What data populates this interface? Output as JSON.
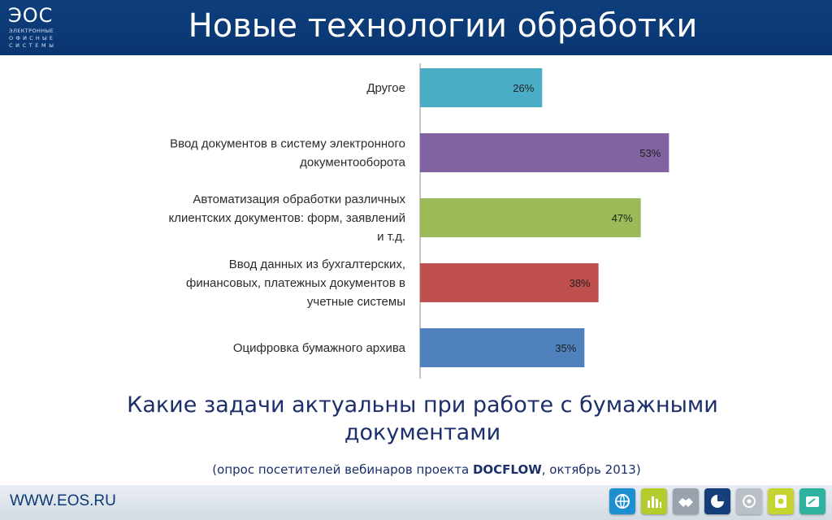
{
  "header": {
    "logo_main": "ЭОС",
    "logo_line1": "ЭЛЕКТРОННЫЕ",
    "logo_line2": "ОФИСНЫЕ",
    "logo_line3": "СИСТЕМЫ",
    "title": "Новые технологии обработки"
  },
  "chart_data": {
    "type": "bar",
    "orientation": "horizontal",
    "categories": [
      [
        "Другое"
      ],
      [
        "Ввод документов в систему электронного",
        "документооборота"
      ],
      [
        "Автоматизация обработки различных",
        "клиентских документов: форм, заявлений",
        "и т.д."
      ],
      [
        "Ввод данных из бухгалтерских,",
        "финансовых, платежных документов в",
        "учетные системы"
      ],
      [
        "Оцифровка бумажного архива"
      ]
    ],
    "values": [
      26,
      53,
      47,
      38,
      35
    ],
    "value_labels": [
      "26%",
      "53%",
      "47%",
      "38%",
      "35%"
    ],
    "colors": [
      "#4bacc6",
      "#8064a2",
      "#9bbb59",
      "#c0504d",
      "#4f81bd"
    ],
    "xlim": [
      0,
      100
    ],
    "grid": false,
    "legend": "none"
  },
  "caption": {
    "question": "Какие задачи актуальны при работе с бумажными документами",
    "source_prefix": "(опрос посетителей вебинаров проекта ",
    "source_bold": "DOCFLOW",
    "source_suffix": ",  октябрь 2013)"
  },
  "footer": {
    "site": "WWW.EOS.RU",
    "tiles": [
      {
        "icon": "globe-arrows-icon",
        "color": "#1d8fd0"
      },
      {
        "icon": "bar-chart-icon",
        "color": "#b5cc2e"
      },
      {
        "icon": "handshake-icon",
        "color": "#9aa3ad"
      },
      {
        "icon": "pie-disk-icon",
        "color": "#143e7a"
      },
      {
        "icon": "globe-gear-icon",
        "color": "#b9bfc6"
      },
      {
        "icon": "document-stamp-icon",
        "color": "#c6d42f"
      },
      {
        "icon": "folder-sign-icon",
        "color": "#2db2a0"
      }
    ]
  }
}
